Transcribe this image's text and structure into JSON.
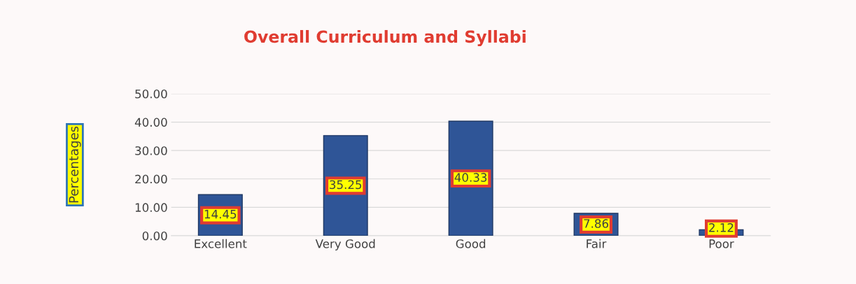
{
  "chart_data": {
    "type": "bar",
    "title": "Overall Curriculum and Syllabi",
    "ylabel": "Percentages",
    "categories": [
      "Excellent",
      "Very Good",
      "Good",
      "Fair",
      "Poor"
    ],
    "values": [
      14.45,
      35.25,
      40.33,
      7.86,
      2.12
    ],
    "color": "#2f5597",
    "ylim": [
      0,
      50
    ],
    "yticks": [
      {
        "value": 0,
        "label": "0.00"
      },
      {
        "value": 10,
        "label": "10.00"
      },
      {
        "value": 20,
        "label": "20.00"
      },
      {
        "value": 30,
        "label": "30.00"
      },
      {
        "value": 40,
        "label": "40.00"
      },
      {
        "value": 50,
        "label": "50.00"
      }
    ],
    "grid": "y",
    "data_labels": true,
    "legend": false
  }
}
